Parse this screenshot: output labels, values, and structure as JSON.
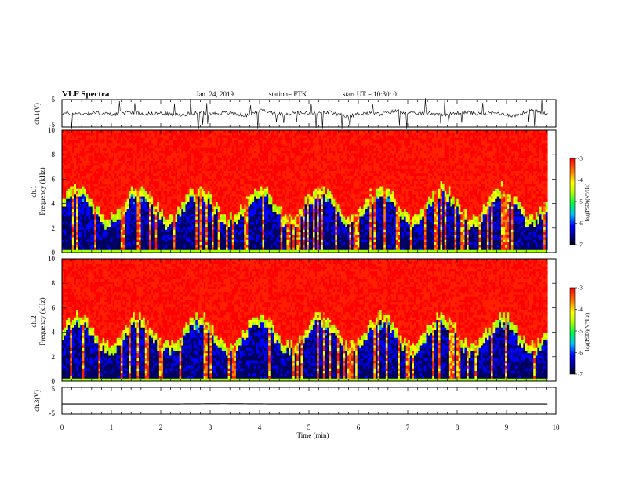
{
  "header": {
    "title": "VLF Spectra",
    "date": "Jan. 24, 2019",
    "station": "station= FTK",
    "start": "start UT =   10:30: 0"
  },
  "chart_data": [
    {
      "type": "line",
      "panel": "ch1-waveform",
      "ylabel": "ch.1(V)",
      "ylim": [
        -5,
        5
      ],
      "yticks": [
        "5",
        "-5"
      ],
      "series": [
        {
          "values": [
            0.2,
            -0.5,
            0.8,
            -1.2,
            2.4,
            -0.6,
            0.3,
            -2.8,
            1.5,
            -0.4,
            0.9,
            -3.1,
            4.8,
            -1.0,
            0.5,
            -0.3,
            1.8,
            -4.6,
            0.7,
            -0.9,
            3.9,
            -0.5,
            0.4,
            -1.7,
            2.2,
            -0.8,
            0.6,
            -3.5,
            4.2,
            -0.2
          ]
        }
      ]
    },
    {
      "type": "heatmap",
      "panel": "ch1-spectrogram",
      "ylabel": "ch.1\nFrequency (kHz)",
      "ylim": [
        0,
        10
      ],
      "yticks": [
        "0",
        "2",
        "4",
        "6",
        "8",
        "10"
      ],
      "colorbar": {
        "label": "log(PSD)(V²/Hz)",
        "range": [
          -7,
          -3
        ],
        "ticks": [
          "-3",
          "-4",
          "-5",
          "-6",
          "-7"
        ]
      }
    },
    {
      "type": "heatmap",
      "panel": "ch2-spectrogram",
      "ylabel": "ch.2\nFrequency (kHz)",
      "ylim": [
        0,
        10
      ],
      "yticks": [
        "0",
        "2",
        "4",
        "6",
        "8",
        "10"
      ],
      "colorbar": {
        "label": "log(PSD)(V²/Hz)",
        "range": [
          -7,
          -3
        ],
        "ticks": [
          "-3",
          "-4",
          "-5",
          "-6",
          "-7"
        ]
      }
    },
    {
      "type": "line",
      "panel": "ch3-waveform",
      "ylabel": "ch.3(V)",
      "ylim": [
        -5,
        5
      ],
      "yticks": [
        "5",
        "-5"
      ],
      "series": [
        {
          "values": [
            -1.2,
            -1.2,
            -1.2,
            -1.1,
            -1.2,
            -1.2,
            -1.2,
            -1.2,
            -1.2,
            -1.2
          ]
        }
      ]
    }
  ],
  "xaxis": {
    "label": "Time (min)",
    "range": [
      0,
      10
    ],
    "ticks": [
      "0",
      "1",
      "2",
      "3",
      "4",
      "5",
      "6",
      "7",
      "8",
      "9",
      "10"
    ],
    "data_end": 9.83
  },
  "colors": {
    "colormap": [
      "#000060",
      "#0000ff",
      "#00a0ff",
      "#00ff80",
      "#a0ff00",
      "#ffff00",
      "#ff8000",
      "#ff2000",
      "#ff0000"
    ]
  }
}
